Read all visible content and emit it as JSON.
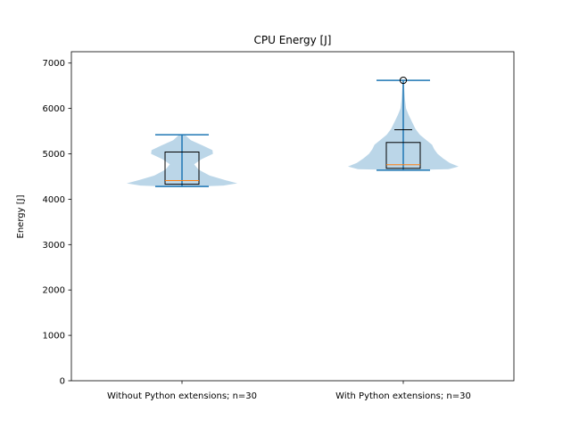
{
  "chart_data": {
    "type": "violin",
    "title": "CPU Energy [J]",
    "xlabel": "",
    "ylabel": "Energy [J]",
    "ylim": [
      0,
      7250
    ],
    "yticks": [
      0,
      1000,
      2000,
      3000,
      4000,
      5000,
      6000,
      7000
    ],
    "categories": [
      "Without Python extensions; n=30",
      "With Python extensions; n=30"
    ],
    "grid": false,
    "legend": "none",
    "colors": {
      "violin_fill": "#1f77b4",
      "violin_edge": "#1f77b4",
      "median": "#ff7f0e",
      "box": "#000000",
      "mean_marker": "#000000"
    },
    "groups": [
      {
        "category": "Without Python extensions; n=30",
        "min": 4280,
        "q1": 4330,
        "median": 4410,
        "q3": 5040,
        "max": 5420,
        "mean": null,
        "outliers": [],
        "density": [
          [
            4270,
            0.05
          ],
          [
            4300,
            0.75
          ],
          [
            4350,
            1.0
          ],
          [
            4420,
            0.78
          ],
          [
            4520,
            0.5
          ],
          [
            4650,
            0.3
          ],
          [
            4770,
            0.22
          ],
          [
            4880,
            0.35
          ],
          [
            5000,
            0.56
          ],
          [
            5080,
            0.55
          ],
          [
            5180,
            0.38
          ],
          [
            5300,
            0.16
          ],
          [
            5420,
            0.05
          ]
        ]
      },
      {
        "category": "With Python extensions; n=30",
        "min": 4640,
        "q1": 4680,
        "median": 4760,
        "q3": 5250,
        "max": 6620,
        "mean": 5530,
        "outliers": [
          6620
        ],
        "density": [
          [
            4640,
            0.05
          ],
          [
            4660,
            0.82
          ],
          [
            4720,
            1.0
          ],
          [
            4800,
            0.84
          ],
          [
            4900,
            0.72
          ],
          [
            5000,
            0.62
          ],
          [
            5100,
            0.56
          ],
          [
            5200,
            0.52
          ],
          [
            5300,
            0.42
          ],
          [
            5420,
            0.3
          ],
          [
            5550,
            0.22
          ],
          [
            5700,
            0.16
          ],
          [
            5850,
            0.1
          ],
          [
            6000,
            0.05
          ],
          [
            6200,
            0.03
          ],
          [
            6400,
            0.02
          ],
          [
            6620,
            0.01
          ]
        ]
      }
    ]
  }
}
